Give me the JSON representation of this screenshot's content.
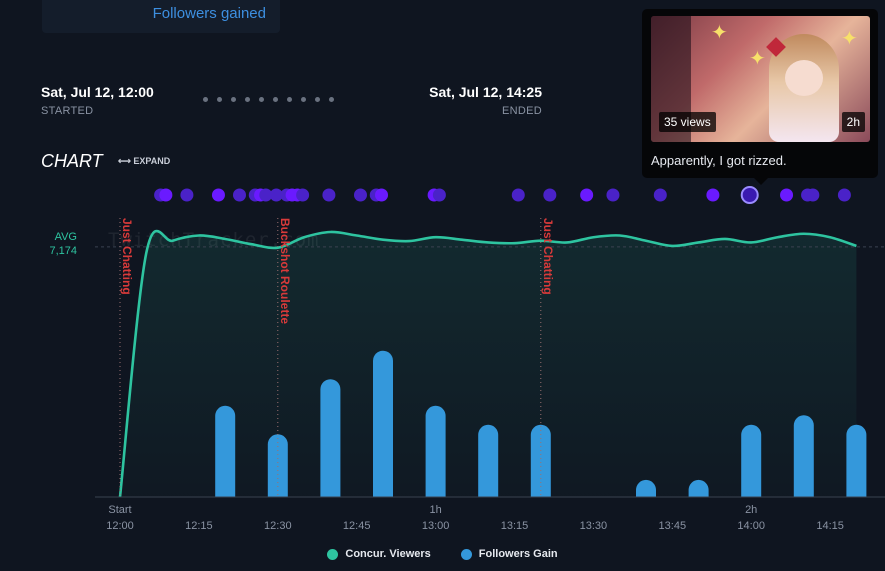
{
  "stat_card": {
    "label": "Followers gained"
  },
  "stream": {
    "start_time": "Sat, Jul 12, 12:00",
    "start_label": "STARTED",
    "end_time": "Sat, Jul 12, 14:25",
    "end_label": "ENDED"
  },
  "chart_header": {
    "title": "CHART",
    "expand_label": "EXPAND"
  },
  "avg": {
    "label": "AVG",
    "value": "7,174"
  },
  "watermark": "TwitchTracker.com",
  "tooltip": {
    "views": "35 views",
    "duration": "2h",
    "caption": "Apparently, I got rizzed."
  },
  "colors": {
    "viewers": "#2ec4a0",
    "followers": "#3498db",
    "category": "#d83a3a",
    "clip_dot": "#4a22c8"
  },
  "chart_data": {
    "type": "line+bar",
    "x_range_minutes": [
      0,
      150
    ],
    "x_ticks": [
      {
        "m": 0,
        "top": "Start",
        "bottom": "12:00"
      },
      {
        "m": 15,
        "bottom": "12:15"
      },
      {
        "m": 30,
        "bottom": "12:30"
      },
      {
        "m": 45,
        "bottom": "12:45"
      },
      {
        "m": 60,
        "top": "1h",
        "bottom": "13:00"
      },
      {
        "m": 75,
        "bottom": "13:15"
      },
      {
        "m": 90,
        "bottom": "13:30"
      },
      {
        "m": 105,
        "bottom": "13:45"
      },
      {
        "m": 120,
        "top": "2h",
        "bottom": "14:00"
      },
      {
        "m": 135,
        "bottom": "14:15"
      }
    ],
    "viewers": {
      "name": "Concur. Viewers",
      "avg": 7174,
      "points": [
        [
          0,
          0
        ],
        [
          5,
          7000
        ],
        [
          10,
          7350
        ],
        [
          15,
          7500
        ],
        [
          20,
          7400
        ],
        [
          25,
          7250
        ],
        [
          30,
          7150
        ],
        [
          35,
          7450
        ],
        [
          40,
          7600
        ],
        [
          45,
          7500
        ],
        [
          50,
          7380
        ],
        [
          55,
          7340
        ],
        [
          60,
          7450
        ],
        [
          65,
          7380
        ],
        [
          70,
          7300
        ],
        [
          75,
          7280
        ],
        [
          80,
          7350
        ],
        [
          85,
          7300
        ],
        [
          90,
          7450
        ],
        [
          95,
          7500
        ],
        [
          100,
          7350
        ],
        [
          105,
          7200
        ],
        [
          110,
          7300
        ],
        [
          115,
          7400
        ],
        [
          120,
          7300
        ],
        [
          125,
          7450
        ],
        [
          130,
          7550
        ],
        [
          135,
          7450
        ],
        [
          140,
          7200
        ]
      ]
    },
    "followers": {
      "name": "Followers Gain",
      "bars": [
        {
          "m": 20,
          "v": 48
        },
        {
          "m": 30,
          "v": 33
        },
        {
          "m": 40,
          "v": 62
        },
        {
          "m": 50,
          "v": 77
        },
        {
          "m": 60,
          "v": 48
        },
        {
          "m": 70,
          "v": 38
        },
        {
          "m": 80,
          "v": 38
        },
        {
          "m": 100,
          "v": 9
        },
        {
          "m": 110,
          "v": 9
        },
        {
          "m": 120,
          "v": 38
        },
        {
          "m": 130,
          "v": 43
        },
        {
          "m": 140,
          "v": 38
        }
      ],
      "max": 100
    },
    "categories": [
      {
        "m": 0,
        "name": "Just Chatting"
      },
      {
        "m": 30,
        "name": "Buckshot Roulette"
      },
      {
        "m": 80,
        "name": "Just Chatting"
      }
    ],
    "clips": [
      {
        "m": 10
      },
      {
        "m": 11
      },
      {
        "m": 15
      },
      {
        "m": 21
      },
      {
        "m": 25
      },
      {
        "m": 28
      },
      {
        "m": 29
      },
      {
        "m": 30
      },
      {
        "m": 32
      },
      {
        "m": 34
      },
      {
        "m": 35
      },
      {
        "m": 36
      },
      {
        "m": 37
      },
      {
        "m": 42
      },
      {
        "m": 48
      },
      {
        "m": 51
      },
      {
        "m": 52
      },
      {
        "m": 62
      },
      {
        "m": 63
      },
      {
        "m": 78
      },
      {
        "m": 84
      },
      {
        "m": 91
      },
      {
        "m": 96
      },
      {
        "m": 105
      },
      {
        "m": 115
      },
      {
        "m": 122,
        "selected": true
      },
      {
        "m": 129
      },
      {
        "m": 133
      },
      {
        "m": 134
      },
      {
        "m": 140
      }
    ],
    "legend": [
      "Concur. Viewers",
      "Followers Gain"
    ]
  }
}
